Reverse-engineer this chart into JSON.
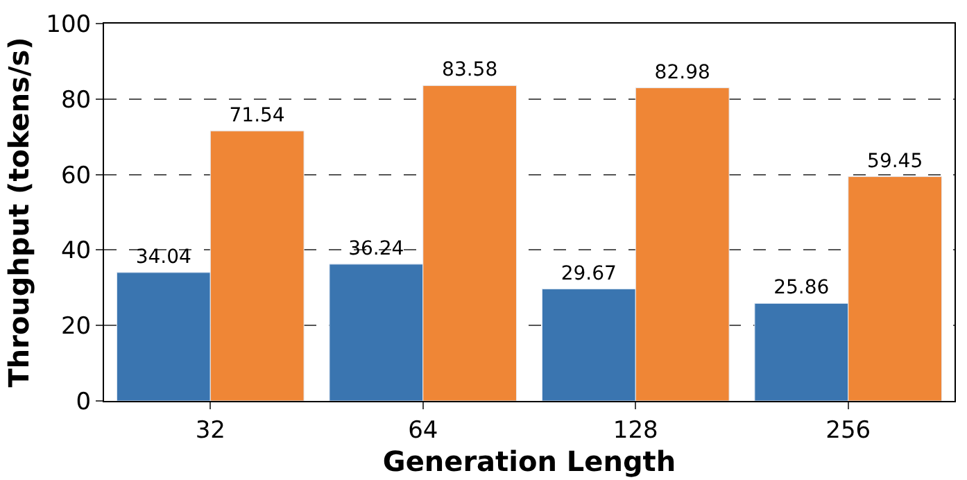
{
  "chart_data": {
    "type": "bar",
    "xlabel": "Generation Length",
    "ylabel": "Throughput (tokens/s)",
    "categories": [
      "32",
      "64",
      "128",
      "256"
    ],
    "series": [
      {
        "color": "#3a75b0",
        "values": [
          34.04,
          36.24,
          29.67,
          25.86
        ]
      },
      {
        "color": "#ef8636",
        "values": [
          71.54,
          83.58,
          82.98,
          59.45
        ]
      }
    ],
    "ylim": [
      0,
      100
    ],
    "yticks": [
      0,
      20,
      40,
      60,
      80,
      100
    ],
    "grid": "y",
    "data_labels": true
  }
}
